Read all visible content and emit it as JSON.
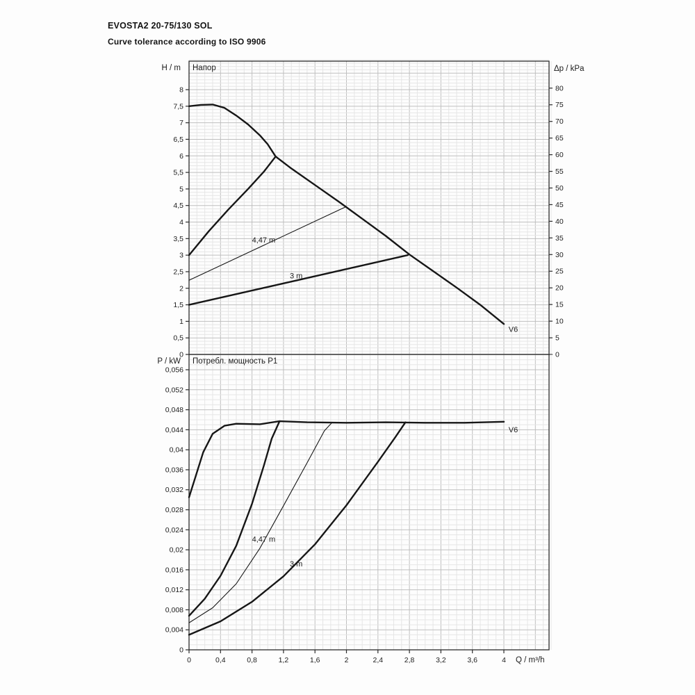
{
  "header": {
    "title": "EVOSTA2 20-75/130 SOL",
    "subtitle": "Curve tolerance according to ISO 9906"
  },
  "chart_data": [
    {
      "type": "line",
      "name": "head",
      "title": "Напор",
      "ylabel": "H / m",
      "y2label": "Δp / kPa",
      "xlim": [
        0,
        4.574
      ],
      "ylim": [
        0,
        8.861
      ],
      "y2lim": [
        0,
        88.1
      ],
      "grid": {
        "minor_x": 0.1,
        "major_x": 0.4,
        "minor_y": 0.1,
        "major_y": 0.5
      },
      "y_ticks": [
        {
          "v": 0,
          "label": "0"
        },
        {
          "v": 0.5,
          "label": "0,5"
        },
        {
          "v": 1,
          "label": "1"
        },
        {
          "v": 1.5,
          "label": "1,5"
        },
        {
          "v": 2,
          "label": "2"
        },
        {
          "v": 2.5,
          "label": "2,5"
        },
        {
          "v": 3,
          "label": "3"
        },
        {
          "v": 3.5,
          "label": "3,5"
        },
        {
          "v": 4,
          "label": "4"
        },
        {
          "v": 4.5,
          "label": "4,5"
        },
        {
          "v": 5,
          "label": "5"
        },
        {
          "v": 5.5,
          "label": "5,5"
        },
        {
          "v": 6,
          "label": "6"
        },
        {
          "v": 6.5,
          "label": "6,5"
        },
        {
          "v": 7,
          "label": "7"
        },
        {
          "v": 7.5,
          "label": "7,5"
        },
        {
          "v": 8,
          "label": "8"
        }
      ],
      "y2_ticks": [
        {
          "v": 0,
          "label": "0"
        },
        {
          "v": 5,
          "label": "5"
        },
        {
          "v": 10,
          "label": "10"
        },
        {
          "v": 15,
          "label": "15"
        },
        {
          "v": 20,
          "label": "20"
        },
        {
          "v": 25,
          "label": "25"
        },
        {
          "v": 30,
          "label": "30"
        },
        {
          "v": 35,
          "label": "35"
        },
        {
          "v": 40,
          "label": "40"
        },
        {
          "v": 45,
          "label": "45"
        },
        {
          "v": 50,
          "label": "50"
        },
        {
          "v": 55,
          "label": "55"
        },
        {
          "v": 60,
          "label": "60"
        },
        {
          "v": 65,
          "label": "65"
        },
        {
          "v": 70,
          "label": "70"
        },
        {
          "v": 75,
          "label": "75"
        },
        {
          "v": 80,
          "label": "80"
        }
      ],
      "series": [
        {
          "name": "v6-head",
          "emphasis": "thick",
          "points": [
            [
              0,
              7.5
            ],
            [
              0.15,
              7.54
            ],
            [
              0.3,
              7.55
            ],
            [
              0.45,
              7.45
            ],
            [
              0.6,
              7.22
            ],
            [
              0.75,
              6.95
            ],
            [
              0.9,
              6.62
            ],
            [
              1.0,
              6.35
            ],
            [
              1.1,
              5.98
            ],
            [
              1.3,
              5.62
            ],
            [
              1.6,
              5.12
            ],
            [
              1.9,
              4.62
            ],
            [
              2.2,
              4.1
            ],
            [
              2.5,
              3.58
            ],
            [
              2.8,
              3.02
            ],
            [
              3.1,
              2.52
            ],
            [
              3.4,
              2.02
            ],
            [
              3.7,
              1.5
            ],
            [
              4.0,
              0.92
            ]
          ]
        },
        {
          "name": "max-power-boundary-head",
          "emphasis": "thick",
          "points": [
            [
              0,
              3.0
            ],
            [
              0.25,
              3.72
            ],
            [
              0.5,
              4.38
            ],
            [
              0.75,
              5.0
            ],
            [
              0.95,
              5.52
            ],
            [
              1.1,
              5.98
            ]
          ]
        },
        {
          "name": "prop-pressure-4-47m-head",
          "emphasis": "thin",
          "points": [
            [
              0,
              2.24
            ],
            [
              2.0,
              4.47
            ]
          ]
        },
        {
          "name": "prop-pressure-3m-head",
          "emphasis": "thick",
          "points": [
            [
              0,
              1.5
            ],
            [
              2.78,
              3.0
            ]
          ]
        }
      ],
      "annotations": [
        {
          "text": "V6",
          "q": 4.06,
          "v": 0.68
        },
        {
          "text": "4,47 m",
          "q": 0.8,
          "v": 3.38
        },
        {
          "text": "3 m",
          "q": 1.28,
          "v": 2.3
        }
      ]
    },
    {
      "type": "line",
      "name": "power",
      "title": "Потребл. мощность P1",
      "ylabel": "P / kW",
      "xlabel": "Q / m³/h",
      "xlim": [
        0,
        4.574
      ],
      "ylim": [
        0,
        0.059057
      ],
      "grid": {
        "minor_x": 0.1,
        "major_x": 0.4,
        "minor_y": 0.001,
        "major_y": 0.004
      },
      "y_ticks": [
        {
          "v": 0,
          "label": "0"
        },
        {
          "v": 0.004,
          "label": "0,004"
        },
        {
          "v": 0.008,
          "label": "0,008"
        },
        {
          "v": 0.012,
          "label": "0,012"
        },
        {
          "v": 0.016,
          "label": "0,016"
        },
        {
          "v": 0.02,
          "label": "0,02"
        },
        {
          "v": 0.024,
          "label": "0,024"
        },
        {
          "v": 0.028,
          "label": "0,028"
        },
        {
          "v": 0.032,
          "label": "0,032"
        },
        {
          "v": 0.036,
          "label": "0,036"
        },
        {
          "v": 0.04,
          "label": "0,04"
        },
        {
          "v": 0.044,
          "label": "0,044"
        },
        {
          "v": 0.048,
          "label": "0,048"
        },
        {
          "v": 0.052,
          "label": "0,052"
        },
        {
          "v": 0.056,
          "label": "0,056"
        }
      ],
      "x_ticks": [
        {
          "v": 0,
          "label": "0"
        },
        {
          "v": 0.4,
          "label": "0,4"
        },
        {
          "v": 0.8,
          "label": "0,8"
        },
        {
          "v": 1.2,
          "label": "1,2"
        },
        {
          "v": 1.6,
          "label": "1,6"
        },
        {
          "v": 2,
          "label": "2"
        },
        {
          "v": 2.4,
          "label": "2,4"
        },
        {
          "v": 2.8,
          "label": "2,8"
        },
        {
          "v": 3.2,
          "label": "3,2"
        },
        {
          "v": 3.6,
          "label": "3,6"
        },
        {
          "v": 4,
          "label": "4"
        }
      ],
      "series": [
        {
          "name": "v6-power",
          "emphasis": "thick",
          "points": [
            [
              0,
              0.0305
            ],
            [
              0.08,
              0.0345
            ],
            [
              0.18,
              0.0395
            ],
            [
              0.3,
              0.0432
            ],
            [
              0.45,
              0.0448
            ],
            [
              0.6,
              0.0452
            ],
            [
              0.9,
              0.0451
            ],
            [
              1.15,
              0.0457
            ],
            [
              1.5,
              0.0455
            ],
            [
              2.0,
              0.0454
            ],
            [
              2.5,
              0.0455
            ],
            [
              3.0,
              0.0454
            ],
            [
              3.5,
              0.0454
            ],
            [
              4.0,
              0.0456
            ]
          ]
        },
        {
          "name": "max-power-boundary-power",
          "emphasis": "thick",
          "points": [
            [
              0,
              0.0068
            ],
            [
              0.2,
              0.0102
            ],
            [
              0.4,
              0.0148
            ],
            [
              0.6,
              0.0208
            ],
            [
              0.8,
              0.0292
            ],
            [
              0.95,
              0.0368
            ],
            [
              1.05,
              0.0422
            ],
            [
              1.15,
              0.0457
            ]
          ]
        },
        {
          "name": "prop-pressure-4-47m-power",
          "emphasis": "thin",
          "points": [
            [
              0,
              0.0054
            ],
            [
              0.3,
              0.0084
            ],
            [
              0.6,
              0.0132
            ],
            [
              0.9,
              0.0203
            ],
            [
              1.2,
              0.0288
            ],
            [
              1.5,
              0.0374
            ],
            [
              1.72,
              0.0438
            ],
            [
              1.82,
              0.0455
            ]
          ]
        },
        {
          "name": "prop-pressure-3m-power",
          "emphasis": "thick",
          "points": [
            [
              0,
              0.003
            ],
            [
              0.4,
              0.0057
            ],
            [
              0.8,
              0.0096
            ],
            [
              1.2,
              0.0147
            ],
            [
              1.6,
              0.0211
            ],
            [
              2.0,
              0.0289
            ],
            [
              2.4,
              0.0376
            ],
            [
              2.62,
              0.0425
            ],
            [
              2.75,
              0.0455
            ]
          ]
        }
      ],
      "annotations": [
        {
          "text": "V6",
          "q": 4.06,
          "v": 0.0435
        },
        {
          "text": "4,47 m",
          "q": 0.8,
          "v": 0.0216
        },
        {
          "text": "3 m",
          "q": 1.28,
          "v": 0.0167
        }
      ]
    }
  ]
}
